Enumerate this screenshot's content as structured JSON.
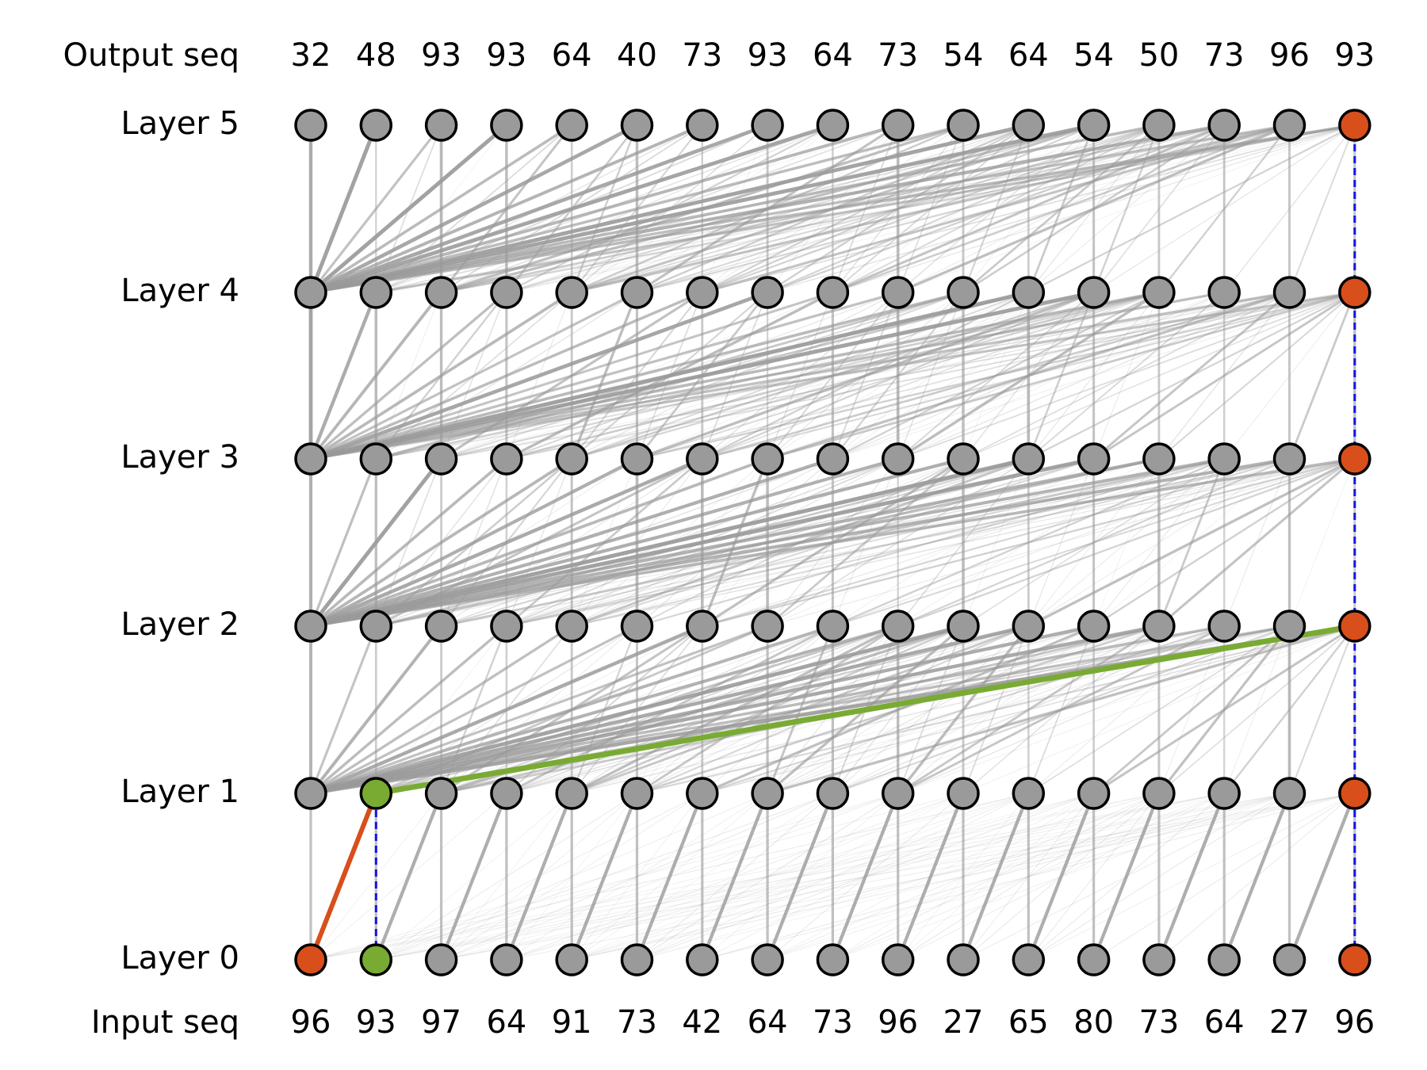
{
  "row_labels": {
    "output": "Output seq",
    "input": "Input seq",
    "layers": [
      "Layer 0",
      "Layer 1",
      "Layer 2",
      "Layer 3",
      "Layer 4",
      "Layer 5"
    ]
  },
  "output_seq": [
    "32",
    "48",
    "93",
    "93",
    "64",
    "40",
    "73",
    "93",
    "64",
    "73",
    "54",
    "64",
    "54",
    "50",
    "73",
    "96",
    "93"
  ],
  "input_seq": [
    "96",
    "93",
    "97",
    "64",
    "91",
    "73",
    "42",
    "64",
    "73",
    "96",
    "27",
    "65",
    "80",
    "73",
    "64",
    "27",
    "96"
  ],
  "colors": {
    "node_fill": "#9a9a9a",
    "node_stroke": "#000000",
    "edge": "#9a9a9a",
    "highlight_orange": "#d84f1c",
    "highlight_green": "#79ab33",
    "dashed_blue": "#1414e6"
  },
  "highlights": {
    "orange_nodes": [
      {
        "layer": 0,
        "pos": 0
      },
      {
        "layer": 0,
        "pos": 16
      },
      {
        "layer": 1,
        "pos": 16
      },
      {
        "layer": 2,
        "pos": 16
      },
      {
        "layer": 3,
        "pos": 16
      },
      {
        "layer": 4,
        "pos": 16
      },
      {
        "layer": 5,
        "pos": 16
      }
    ],
    "green_nodes": [
      {
        "layer": 0,
        "pos": 1
      },
      {
        "layer": 1,
        "pos": 1
      }
    ],
    "orange_edges": [
      {
        "from_layer": 0,
        "from_pos": 0,
        "to_layer": 1,
        "to_pos": 1
      }
    ],
    "green_edges": [
      {
        "from_layer": 1,
        "from_pos": 1,
        "to_layer": 2,
        "to_pos": 16
      }
    ],
    "dashed_edges": [
      {
        "from_layer": 0,
        "from_pos": 1,
        "to_layer": 1,
        "to_pos": 1
      },
      {
        "from_layer": 0,
        "from_pos": 16,
        "to_layer": 5,
        "to_pos": 16
      }
    ]
  }
}
